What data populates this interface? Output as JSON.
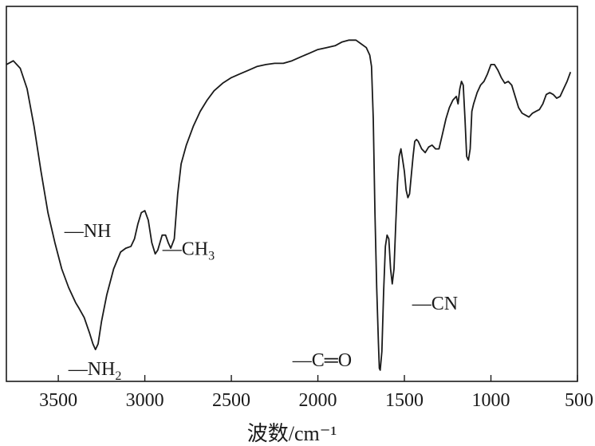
{
  "chart_data": {
    "type": "line",
    "title": "",
    "xlabel": "波数/cm⁻¹",
    "ylabel": "",
    "xlim": [
      3800,
      500
    ],
    "x_reversed": true,
    "ylim": [
      0,
      1
    ],
    "grid": false,
    "legend": "none",
    "x_ticks": [
      3500,
      3000,
      2500,
      2000,
      1500,
      1000,
      500
    ],
    "x_tick_labels": [
      "3500",
      "3000",
      "2500",
      "2000",
      "1500",
      "1000",
      "500"
    ],
    "series": [
      {
        "color": "#1a1a1a",
        "points": [
          [
            3800,
            0.845
          ],
          [
            3760,
            0.855
          ],
          [
            3720,
            0.835
          ],
          [
            3680,
            0.78
          ],
          [
            3640,
            0.68
          ],
          [
            3600,
            0.56
          ],
          [
            3560,
            0.45
          ],
          [
            3520,
            0.37
          ],
          [
            3480,
            0.3
          ],
          [
            3440,
            0.25
          ],
          [
            3400,
            0.21
          ],
          [
            3380,
            0.195
          ],
          [
            3350,
            0.17
          ],
          [
            3320,
            0.13
          ],
          [
            3300,
            0.1
          ],
          [
            3285,
            0.085
          ],
          [
            3270,
            0.1
          ],
          [
            3250,
            0.16
          ],
          [
            3220,
            0.23
          ],
          [
            3180,
            0.3
          ],
          [
            3140,
            0.345
          ],
          [
            3110,
            0.355
          ],
          [
            3080,
            0.36
          ],
          [
            3060,
            0.38
          ],
          [
            3040,
            0.42
          ],
          [
            3020,
            0.45
          ],
          [
            3000,
            0.455
          ],
          [
            2980,
            0.43
          ],
          [
            2960,
            0.37
          ],
          [
            2940,
            0.34
          ],
          [
            2925,
            0.35
          ],
          [
            2900,
            0.39
          ],
          [
            2880,
            0.39
          ],
          [
            2865,
            0.37
          ],
          [
            2850,
            0.355
          ],
          [
            2830,
            0.38
          ],
          [
            2810,
            0.5
          ],
          [
            2790,
            0.58
          ],
          [
            2760,
            0.63
          ],
          [
            2720,
            0.68
          ],
          [
            2680,
            0.72
          ],
          [
            2640,
            0.75
          ],
          [
            2600,
            0.775
          ],
          [
            2550,
            0.795
          ],
          [
            2500,
            0.81
          ],
          [
            2450,
            0.82
          ],
          [
            2400,
            0.83
          ],
          [
            2350,
            0.84
          ],
          [
            2300,
            0.845
          ],
          [
            2250,
            0.848
          ],
          [
            2200,
            0.848
          ],
          [
            2150,
            0.855
          ],
          [
            2100,
            0.865
          ],
          [
            2050,
            0.875
          ],
          [
            2000,
            0.885
          ],
          [
            1950,
            0.89
          ],
          [
            1900,
            0.895
          ],
          [
            1860,
            0.905
          ],
          [
            1820,
            0.91
          ],
          [
            1780,
            0.91
          ],
          [
            1750,
            0.9
          ],
          [
            1720,
            0.89
          ],
          [
            1700,
            0.87
          ],
          [
            1690,
            0.84
          ],
          [
            1680,
            0.7
          ],
          [
            1670,
            0.45
          ],
          [
            1660,
            0.25
          ],
          [
            1650,
            0.1
          ],
          [
            1645,
            0.035
          ],
          [
            1640,
            0.03
          ],
          [
            1630,
            0.08
          ],
          [
            1620,
            0.24
          ],
          [
            1610,
            0.36
          ],
          [
            1600,
            0.39
          ],
          [
            1590,
            0.38
          ],
          [
            1580,
            0.3
          ],
          [
            1570,
            0.26
          ],
          [
            1560,
            0.3
          ],
          [
            1550,
            0.42
          ],
          [
            1540,
            0.53
          ],
          [
            1530,
            0.6
          ],
          [
            1520,
            0.62
          ],
          [
            1510,
            0.59
          ],
          [
            1500,
            0.56
          ],
          [
            1490,
            0.51
          ],
          [
            1480,
            0.49
          ],
          [
            1470,
            0.5
          ],
          [
            1460,
            0.55
          ],
          [
            1450,
            0.6
          ],
          [
            1440,
            0.64
          ],
          [
            1430,
            0.645
          ],
          [
            1420,
            0.64
          ],
          [
            1400,
            0.62
          ],
          [
            1380,
            0.61
          ],
          [
            1360,
            0.625
          ],
          [
            1340,
            0.63
          ],
          [
            1320,
            0.62
          ],
          [
            1300,
            0.62
          ],
          [
            1280,
            0.66
          ],
          [
            1260,
            0.7
          ],
          [
            1240,
            0.73
          ],
          [
            1220,
            0.75
          ],
          [
            1200,
            0.76
          ],
          [
            1190,
            0.74
          ],
          [
            1180,
            0.78
          ],
          [
            1170,
            0.8
          ],
          [
            1160,
            0.79
          ],
          [
            1150,
            0.7
          ],
          [
            1140,
            0.6
          ],
          [
            1130,
            0.59
          ],
          [
            1120,
            0.62
          ],
          [
            1110,
            0.72
          ],
          [
            1100,
            0.74
          ],
          [
            1080,
            0.77
          ],
          [
            1060,
            0.79
          ],
          [
            1040,
            0.8
          ],
          [
            1020,
            0.82
          ],
          [
            1000,
            0.845
          ],
          [
            980,
            0.845
          ],
          [
            960,
            0.83
          ],
          [
            940,
            0.81
          ],
          [
            920,
            0.795
          ],
          [
            900,
            0.8
          ],
          [
            880,
            0.79
          ],
          [
            860,
            0.76
          ],
          [
            840,
            0.73
          ],
          [
            820,
            0.715
          ],
          [
            800,
            0.71
          ],
          [
            780,
            0.705
          ],
          [
            760,
            0.715
          ],
          [
            740,
            0.72
          ],
          [
            720,
            0.725
          ],
          [
            700,
            0.74
          ],
          [
            680,
            0.765
          ],
          [
            660,
            0.77
          ],
          [
            640,
            0.765
          ],
          [
            620,
            0.755
          ],
          [
            600,
            0.76
          ],
          [
            580,
            0.78
          ],
          [
            560,
            0.8
          ],
          [
            540,
            0.825
          ]
        ]
      }
    ],
    "annotations": [
      {
        "name": "nh2",
        "main": "—NH",
        "sub": "2",
        "x": 3285,
        "y": 0.085
      },
      {
        "name": "nh",
        "main": "—NH",
        "sub": "",
        "x": 3110,
        "y": 0.355
      },
      {
        "name": "ch3",
        "main": "—CH",
        "sub": "3",
        "x": 2925,
        "y": 0.35
      },
      {
        "name": "co",
        "main": "—C═O",
        "sub": "",
        "x": 1640,
        "y": 0.03
      },
      {
        "name": "cn",
        "main": "—CN",
        "sub": "",
        "x": 1570,
        "y": 0.26
      }
    ]
  }
}
